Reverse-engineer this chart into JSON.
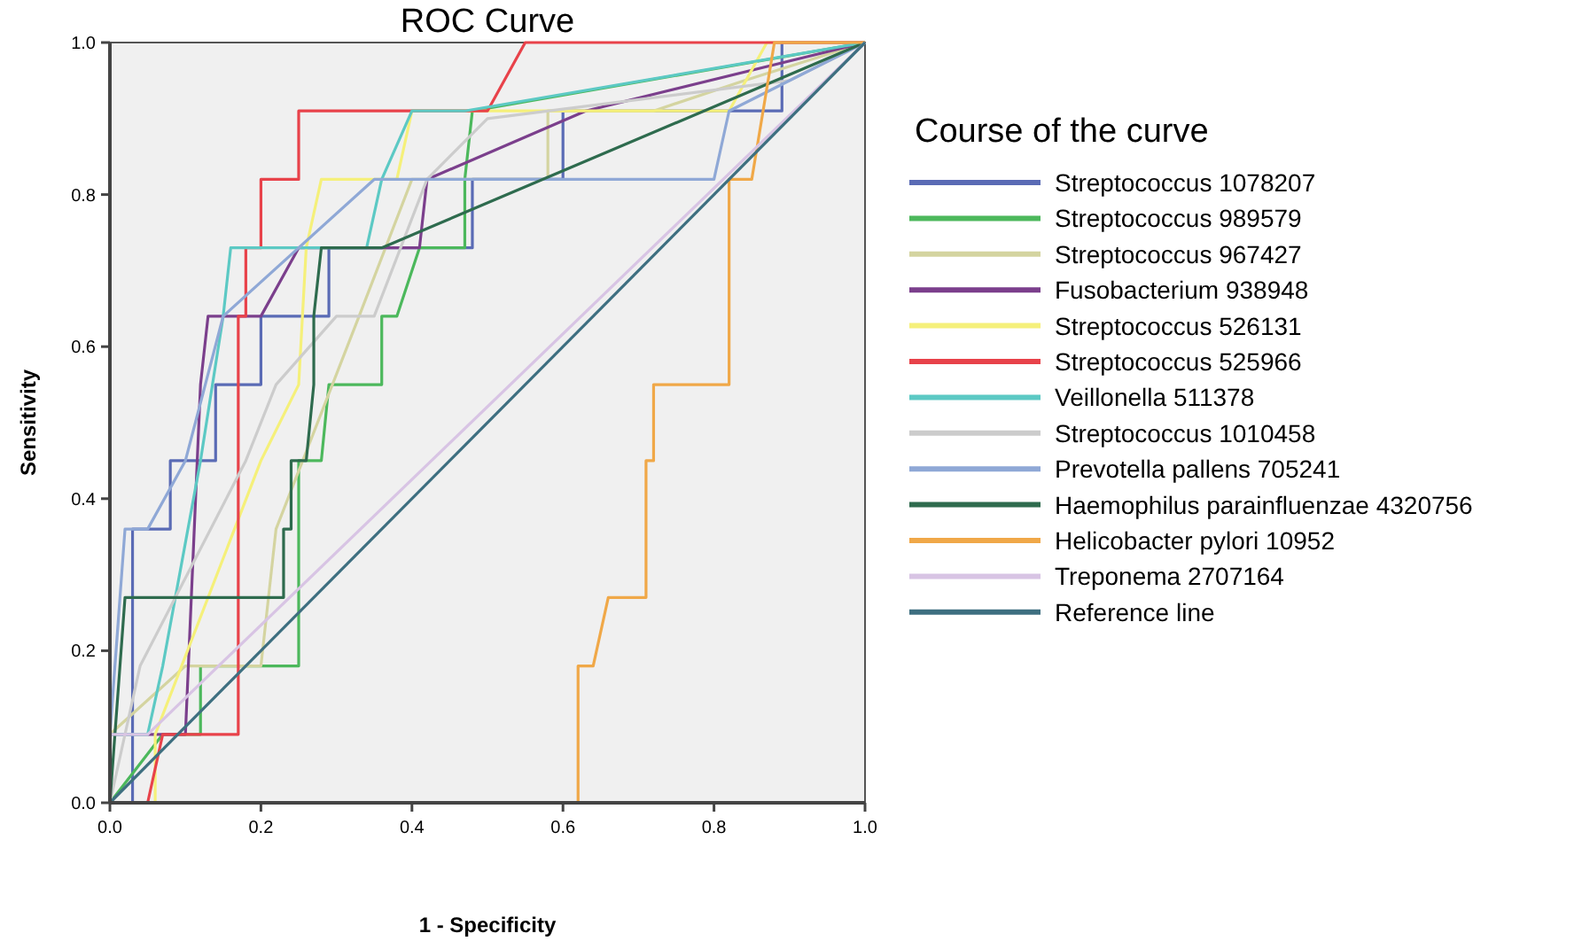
{
  "chart_data": {
    "type": "line",
    "title": "ROC Curve",
    "xlabel": "1 - Specificity",
    "ylabel": "Sensitivity",
    "legend_title": "Course of the curve",
    "legend": "right",
    "grid": false,
    "marker": "none",
    "line_style": "solid",
    "xlim": [
      0,
      1
    ],
    "ylim": [
      0,
      1
    ],
    "xticks": [
      {
        "value": 0,
        "label": "0.0"
      },
      {
        "value": 0.2,
        "label": "0.2"
      },
      {
        "value": 0.4,
        "label": "0.4"
      },
      {
        "value": 0.6,
        "label": "0.6"
      },
      {
        "value": 0.8,
        "label": "0.8"
      },
      {
        "value": 1,
        "label": "1.0"
      }
    ],
    "yticks": [
      {
        "value": 0,
        "label": "0.0"
      },
      {
        "value": 0.2,
        "label": "0.2"
      },
      {
        "value": 0.4,
        "label": "0.4"
      },
      {
        "value": 0.6,
        "label": "0.6"
      },
      {
        "value": 0.8,
        "label": "0.8"
      },
      {
        "value": 1,
        "label": "1.0"
      }
    ],
    "series": [
      {
        "name": "Streptococcus 1078207",
        "color": "#5a6bb5",
        "x": [
          0,
          0.03,
          0.03,
          0.08,
          0.08,
          0.14,
          0.14,
          0.2,
          0.2,
          0.29,
          0.29,
          0.48,
          0.48,
          0.6,
          0.6,
          0.89,
          0.89,
          1
        ],
        "values": [
          0,
          0,
          0.36,
          0.36,
          0.45,
          0.45,
          0.55,
          0.55,
          0.64,
          0.64,
          0.73,
          0.73,
          0.82,
          0.82,
          0.91,
          0.91,
          1,
          1
        ]
      },
      {
        "name": "Streptococcus 989579",
        "color": "#4cb85c",
        "x": [
          0,
          0.07,
          0.12,
          0.12,
          0.25,
          0.25,
          0.28,
          0.29,
          0.36,
          0.36,
          0.38,
          0.41,
          0.47,
          0.47,
          0.48,
          1
        ],
        "values": [
          0,
          0.09,
          0.09,
          0.18,
          0.18,
          0.45,
          0.45,
          0.55,
          0.55,
          0.64,
          0.64,
          0.73,
          0.73,
          0.82,
          0.91,
          1
        ]
      },
      {
        "name": "Streptococcus 967427",
        "color": "#d4d4a0",
        "x": [
          0,
          0.1,
          0.2,
          0.22,
          0.33,
          0.4,
          0.58,
          0.58,
          0.72,
          0.84,
          1
        ],
        "values": [
          0.09,
          0.18,
          0.18,
          0.36,
          0.64,
          0.82,
          0.82,
          0.91,
          0.91,
          0.95,
          1
        ]
      },
      {
        "name": "Fusobacterium 938948",
        "color": "#7b3f8c",
        "x": [
          0,
          0.1,
          0.12,
          0.13,
          0.2,
          0.25,
          0.41,
          0.42,
          0.63,
          1
        ],
        "values": [
          0.09,
          0.09,
          0.55,
          0.64,
          0.64,
          0.73,
          0.73,
          0.82,
          0.91,
          1
        ]
      },
      {
        "name": "Streptococcus 526131",
        "color": "#f5f07a",
        "x": [
          0,
          0.06,
          0.06,
          0.2,
          0.25,
          0.26,
          0.28,
          0.38,
          0.4,
          0.82,
          0.87,
          1
        ],
        "values": [
          0,
          0,
          0.09,
          0.45,
          0.55,
          0.73,
          0.82,
          0.82,
          0.91,
          0.91,
          1,
          1
        ]
      },
      {
        "name": "Streptococcus 525966",
        "color": "#e8424a",
        "x": [
          0,
          0.05,
          0.07,
          0.17,
          0.17,
          0.18,
          0.18,
          0.2,
          0.2,
          0.25,
          0.25,
          0.5,
          0.55,
          1
        ],
        "values": [
          0,
          0,
          0.09,
          0.09,
          0.64,
          0.64,
          0.73,
          0.73,
          0.82,
          0.82,
          0.91,
          0.91,
          1,
          1
        ]
      },
      {
        "name": "Veillonella 511378",
        "color": "#5cc9c4",
        "x": [
          0,
          0.05,
          0.07,
          0.12,
          0.15,
          0.16,
          0.34,
          0.36,
          0.4,
          0.47,
          1
        ],
        "values": [
          0.09,
          0.09,
          0.18,
          0.45,
          0.64,
          0.73,
          0.73,
          0.82,
          0.91,
          0.91,
          1
        ]
      },
      {
        "name": "Streptococcus 1010458",
        "color": "#cccccc",
        "x": [
          0,
          0.04,
          0.18,
          0.22,
          0.3,
          0.35,
          0.42,
          0.5,
          0.9,
          1
        ],
        "values": [
          0,
          0.18,
          0.45,
          0.55,
          0.64,
          0.64,
          0.82,
          0.9,
          0.95,
          1
        ]
      },
      {
        "name": "Prevotella pallens 705241",
        "color": "#8fa8d6",
        "x": [
          0,
          0.02,
          0.05,
          0.1,
          0.15,
          0.35,
          0.8,
          0.82,
          1
        ],
        "values": [
          0.09,
          0.36,
          0.36,
          0.45,
          0.64,
          0.82,
          0.82,
          0.91,
          1
        ]
      },
      {
        "name": "Haemophilus parainfluenzae 4320756",
        "color": "#2e6b4e",
        "x": [
          0,
          0.02,
          0.23,
          0.23,
          0.24,
          0.24,
          0.26,
          0.27,
          0.27,
          0.28,
          0.36,
          1
        ],
        "values": [
          0,
          0.27,
          0.27,
          0.36,
          0.36,
          0.45,
          0.45,
          0.55,
          0.64,
          0.73,
          0.73,
          1
        ]
      },
      {
        "name": "Helicobacter pylori 10952",
        "color": "#f0a848",
        "x": [
          0,
          0.62,
          0.62,
          0.64,
          0.66,
          0.71,
          0.71,
          0.72,
          0.72,
          0.82,
          0.82,
          0.85,
          0.88,
          1
        ],
        "values": [
          0,
          0,
          0.18,
          0.18,
          0.27,
          0.27,
          0.45,
          0.45,
          0.55,
          0.55,
          0.82,
          0.82,
          1,
          1
        ]
      },
      {
        "name": "Treponema 2707164",
        "color": "#d8c4e4",
        "x": [
          0,
          0.05,
          1
        ],
        "values": [
          0.09,
          0.09,
          1
        ]
      },
      {
        "name": "Reference line",
        "color": "#3e6f80",
        "x": [
          0,
          1
        ],
        "values": [
          0,
          1
        ]
      }
    ]
  }
}
